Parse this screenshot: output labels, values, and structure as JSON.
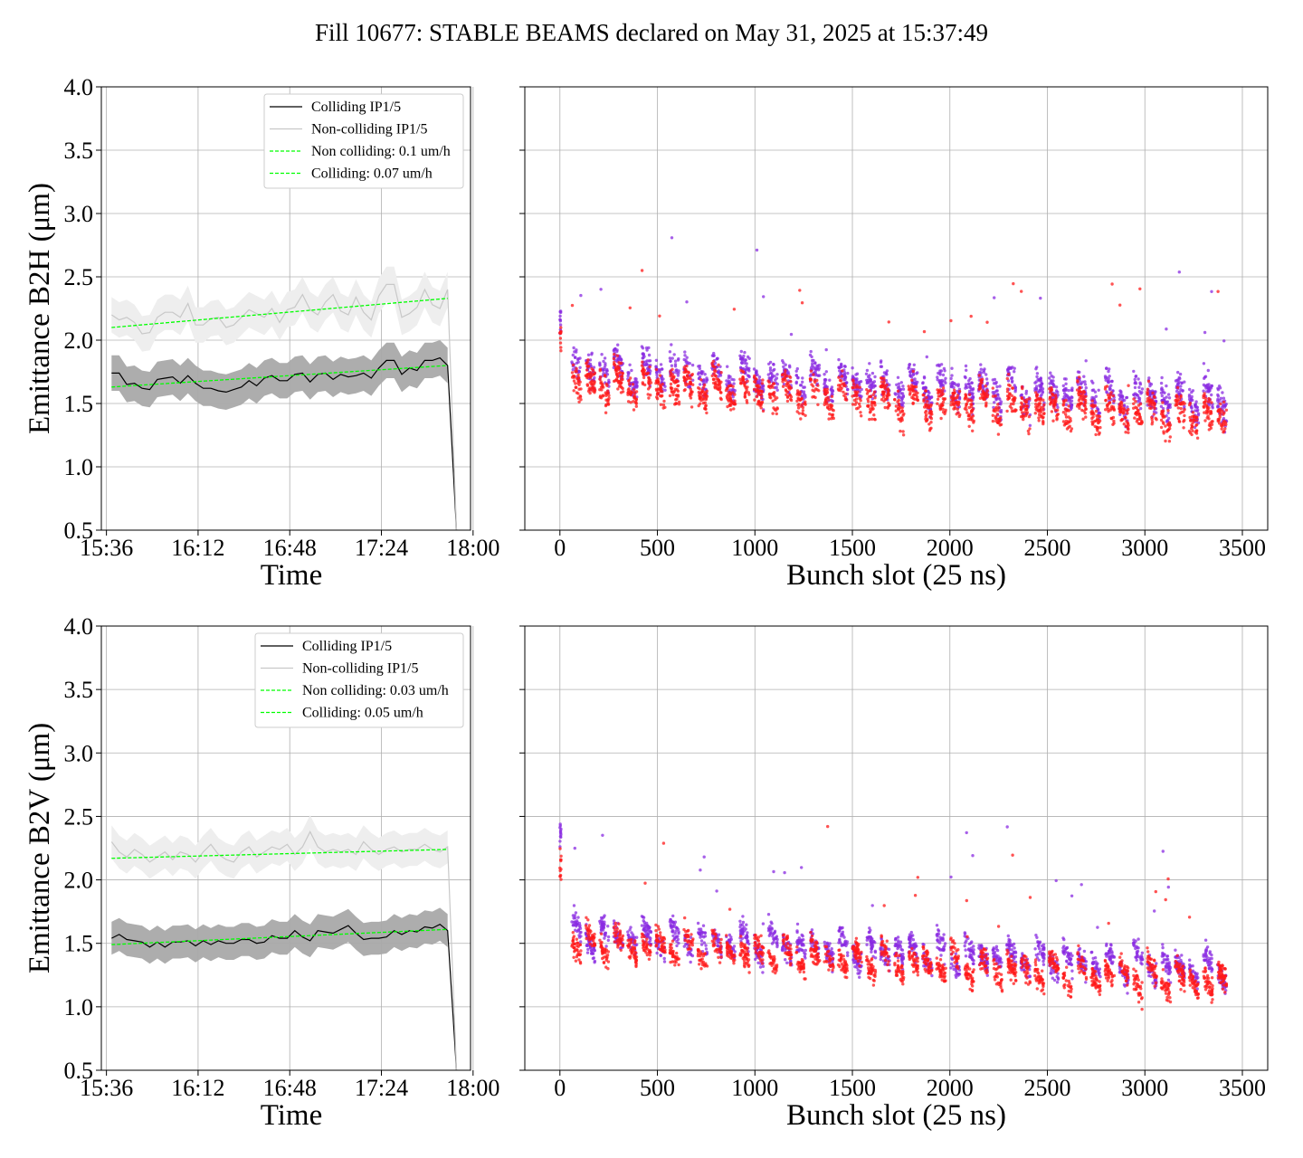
{
  "figure": {
    "title": "Fill 10677: STABLE BEAMS declared on May 31, 2025 at 15:37:49"
  },
  "colors": {
    "colliding_line": "#000000",
    "colliding_band": "#a9a9a9",
    "noncolliding_line": "#c8c8c8",
    "noncolliding_band": "#eeeeee",
    "fit": "#00ff00",
    "scatter_a": "#8a2be2",
    "scatter_b": "#ff1a1a",
    "grid": "#b0b0b0"
  },
  "chart_data": [
    {
      "type": "line",
      "id": "b2h-time",
      "xlabel": "Time",
      "ylabel": "Emittance B2H (μm)",
      "ylim": [
        0.5,
        4.0
      ],
      "yticks": [
        "0.5",
        "1.0",
        "1.5",
        "2.0",
        "2.5",
        "3.0",
        "3.5",
        "4.0"
      ],
      "xticks": [
        "15:36",
        "16:12",
        "16:48",
        "17:24",
        "18:00"
      ],
      "xlim_minutes": [
        -2,
        143
      ],
      "grid": true,
      "legend_position": "upper-right",
      "legend": [
        "Colliding IP1/5",
        "Non-colliding IP1/5",
        "Non colliding: 0.1 um/h",
        "Colliding: 0.07 um/h"
      ],
      "x_minutes": [
        2,
        5,
        8,
        11,
        14,
        17,
        20,
        23,
        26,
        29,
        32,
        35,
        38,
        41,
        44,
        47,
        50,
        53,
        56,
        59,
        62,
        65,
        68,
        71,
        74,
        77,
        80,
        83,
        86,
        89,
        92,
        95,
        98,
        101,
        104,
        107,
        110,
        113,
        116,
        119,
        122,
        125,
        128,
        131,
        134
      ],
      "series": [
        {
          "name": "Colliding IP1/5",
          "role": "colliding",
          "values": [
            1.74,
            1.74,
            1.65,
            1.66,
            1.62,
            1.61,
            1.69,
            1.7,
            1.71,
            1.66,
            1.72,
            1.66,
            1.62,
            1.62,
            1.6,
            1.59,
            1.61,
            1.63,
            1.68,
            1.64,
            1.7,
            1.72,
            1.68,
            1.68,
            1.73,
            1.74,
            1.67,
            1.73,
            1.74,
            1.69,
            1.73,
            1.71,
            1.72,
            1.74,
            1.7,
            1.78,
            1.84,
            1.84,
            1.73,
            1.78,
            1.76,
            1.84,
            1.84,
            1.86,
            1.8
          ],
          "band": 0.14
        },
        {
          "name": "Non-colliding IP1/5",
          "role": "noncolliding",
          "values": [
            2.2,
            2.16,
            2.18,
            2.14,
            2.05,
            2.06,
            2.18,
            2.22,
            2.22,
            2.18,
            2.29,
            2.12,
            2.12,
            2.17,
            2.18,
            2.1,
            2.12,
            2.18,
            2.24,
            2.21,
            2.18,
            2.25,
            2.14,
            2.24,
            2.26,
            2.36,
            2.24,
            2.2,
            2.3,
            2.36,
            2.23,
            2.2,
            2.34,
            2.22,
            2.16,
            2.35,
            2.44,
            2.44,
            2.18,
            2.21,
            2.26,
            2.4,
            2.28,
            2.25,
            2.4
          ],
          "band": 0.14
        },
        {
          "name": "Non colliding: 0.1 um/h",
          "role": "fit",
          "start": 2.1,
          "end": 2.33
        },
        {
          "name": "Colliding: 0.07 um/h",
          "role": "fit",
          "start": 1.63,
          "end": 1.8
        }
      ]
    },
    {
      "type": "scatter",
      "id": "b2h-bunch",
      "xlabel": "Bunch slot (25 ns)",
      "ylim": [
        0.5,
        4.0
      ],
      "xlim": [
        -180,
        3630
      ],
      "xticks": [
        0,
        500,
        1000,
        1500,
        2000,
        2500,
        3000,
        3500
      ],
      "grid": true,
      "series": [
        {
          "role": "scatter_a",
          "generator": {
            "seed": 11,
            "slots": [
              0,
              3420
            ],
            "start": 1.84,
            "end": 1.58,
            "spread": 0.12,
            "first_bunch": 2.25,
            "count": 1700
          }
        },
        {
          "role": "scatter_b",
          "generator": {
            "seed": 23,
            "slots": [
              0,
              3420
            ],
            "start": 1.74,
            "end": 1.45,
            "spread": 0.12,
            "first_bunch": 2.12,
            "count": 1700
          }
        }
      ]
    },
    {
      "type": "line",
      "id": "b2v-time",
      "xlabel": "Time",
      "ylabel": "Emittance B2V (μm)",
      "ylim": [
        0.5,
        4.0
      ],
      "yticks": [
        "0.5",
        "1.0",
        "1.5",
        "2.0",
        "2.5",
        "3.0",
        "3.5",
        "4.0"
      ],
      "xticks": [
        "15:36",
        "16:12",
        "16:48",
        "17:24",
        "18:00"
      ],
      "xlim_minutes": [
        -2,
        143
      ],
      "grid": true,
      "legend_position": "upper-right",
      "legend": [
        "Colliding IP1/5",
        "Non-colliding IP1/5",
        "Non colliding: 0.03 um/h",
        "Colliding: 0.05 um/h"
      ],
      "x_minutes": [
        2,
        5,
        8,
        11,
        14,
        17,
        20,
        23,
        26,
        29,
        32,
        35,
        38,
        41,
        44,
        47,
        50,
        53,
        56,
        59,
        62,
        65,
        68,
        71,
        74,
        77,
        80,
        83,
        86,
        89,
        92,
        95,
        98,
        101,
        104,
        107,
        110,
        113,
        116,
        119,
        122,
        125,
        128,
        131,
        134
      ],
      "series": [
        {
          "name": "Colliding IP1/5",
          "role": "colliding",
          "values": [
            1.54,
            1.57,
            1.53,
            1.52,
            1.51,
            1.47,
            1.51,
            1.47,
            1.51,
            1.51,
            1.52,
            1.48,
            1.52,
            1.49,
            1.52,
            1.5,
            1.5,
            1.53,
            1.53,
            1.5,
            1.51,
            1.56,
            1.54,
            1.54,
            1.6,
            1.55,
            1.52,
            1.6,
            1.59,
            1.58,
            1.61,
            1.64,
            1.58,
            1.53,
            1.54,
            1.54,
            1.55,
            1.6,
            1.57,
            1.6,
            1.59,
            1.63,
            1.62,
            1.65,
            1.6
          ],
          "band": 0.13
        },
        {
          "name": "Non-colliding IP1/5",
          "role": "noncolliding",
          "values": [
            2.3,
            2.22,
            2.18,
            2.24,
            2.2,
            2.14,
            2.18,
            2.22,
            2.16,
            2.22,
            2.2,
            2.14,
            2.22,
            2.28,
            2.2,
            2.16,
            2.14,
            2.22,
            2.26,
            2.18,
            2.22,
            2.26,
            2.24,
            2.28,
            2.2,
            2.26,
            2.38,
            2.26,
            2.22,
            2.24,
            2.22,
            2.24,
            2.2,
            2.3,
            2.24,
            2.2,
            2.24,
            2.26,
            2.22,
            2.24,
            2.24,
            2.28,
            2.24,
            2.22,
            2.26
          ],
          "band": 0.13
        },
        {
          "name": "Non colliding: 0.03 um/h",
          "role": "fit",
          "start": 2.17,
          "end": 2.24
        },
        {
          "name": "Colliding: 0.05 um/h",
          "role": "fit",
          "start": 1.49,
          "end": 1.61
        }
      ]
    },
    {
      "type": "scatter",
      "id": "b2v-bunch",
      "xlabel": "Bunch slot (25 ns)",
      "ylim": [
        0.5,
        4.0
      ],
      "xlim": [
        -180,
        3630
      ],
      "xticks": [
        0,
        500,
        1000,
        1500,
        2000,
        2500,
        3000,
        3500
      ],
      "grid": true,
      "series": [
        {
          "role": "scatter_a",
          "generator": {
            "seed": 37,
            "slots": [
              0,
              3420
            ],
            "start": 1.64,
            "end": 1.36,
            "spread": 0.09,
            "first_bunch": 2.45,
            "count": 1700
          }
        },
        {
          "role": "scatter_b",
          "generator": {
            "seed": 41,
            "slots": [
              0,
              3420
            ],
            "start": 1.58,
            "end": 1.25,
            "spread": 0.09,
            "first_bunch": 2.25,
            "count": 1700
          }
        }
      ]
    }
  ]
}
